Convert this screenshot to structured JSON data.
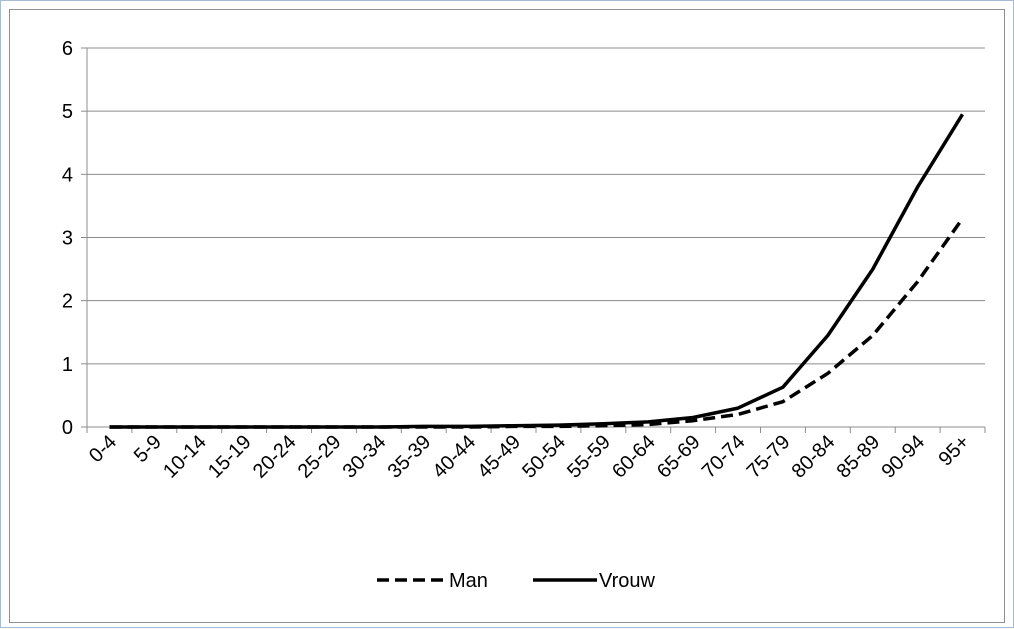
{
  "chart_data": {
    "type": "line",
    "title": "",
    "xlabel": "",
    "ylabel": "",
    "categories": [
      "0-4",
      "5-9",
      "10-14",
      "15-19",
      "20-24",
      "25-29",
      "30-34",
      "35-39",
      "40-44",
      "45-49",
      "50-54",
      "55-59",
      "60-64",
      "65-69",
      "70-74",
      "75-79",
      "80-84",
      "85-89",
      "90-94",
      "95+"
    ],
    "ylim": [
      0,
      6
    ],
    "yticks": [
      0,
      1,
      2,
      3,
      4,
      5,
      6
    ],
    "grid": true,
    "legend_position": "bottom",
    "series": [
      {
        "name": "Man",
        "style": "dashed",
        "color": "#000000",
        "values": [
          0,
          0,
          0,
          0,
          0,
          0,
          0,
          0,
          0,
          0.01,
          0.01,
          0.02,
          0.04,
          0.1,
          0.2,
          0.4,
          0.85,
          1.45,
          2.3,
          3.3
        ]
      },
      {
        "name": "Vrouw",
        "style": "solid",
        "color": "#000000",
        "values": [
          0,
          0,
          0,
          0,
          0,
          0,
          0,
          0.01,
          0.01,
          0.02,
          0.03,
          0.05,
          0.08,
          0.15,
          0.3,
          0.63,
          1.45,
          2.5,
          3.8,
          4.95
        ]
      }
    ]
  }
}
